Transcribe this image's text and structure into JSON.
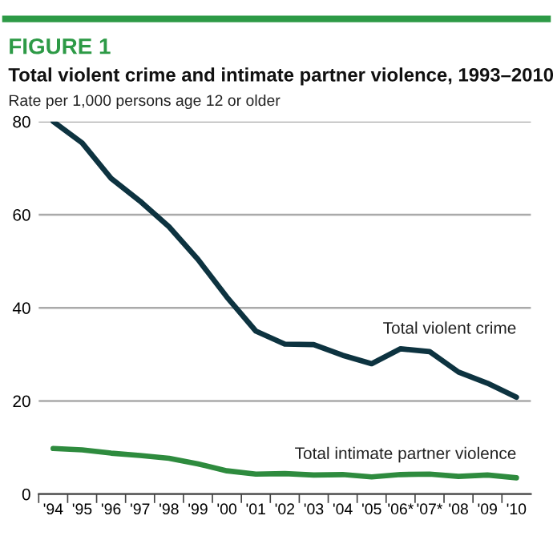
{
  "chart_data": {
    "type": "line",
    "title": "Total violent crime and intimate partner violence, 1993–2010",
    "subtitle": "FIGURE 1",
    "ylabel": "Rate per 1,000 persons age 12 or older",
    "categories": [
      "'94",
      "'95",
      "'96",
      "'97",
      "'98",
      "'99",
      "'00",
      "'01",
      "'02",
      "'03",
      "'04",
      "'05",
      "'06*",
      "'07*",
      "'08",
      "'09",
      "'10"
    ],
    "series": [
      {
        "name": "Total violent crime",
        "color": "#0d3340",
        "values": [
          80,
          75.4,
          67.8,
          62.9,
          57.4,
          50.4,
          42.3,
          35,
          32.2,
          32.1,
          29.8,
          28,
          31.2,
          30.6,
          26.2,
          23.8,
          20.8
        ]
      },
      {
        "name": "Total intimate partner violence",
        "color": "#2e8b3e",
        "values": [
          9.8,
          9.5,
          8.8,
          8.3,
          7.7,
          6.5,
          5.0,
          4.3,
          4.4,
          4.1,
          4.2,
          3.7,
          4.2,
          4.3,
          3.8,
          4.1,
          3.5
        ]
      }
    ],
    "ylim": [
      0,
      80
    ],
    "yticks": [
      0,
      20,
      40,
      60,
      80
    ],
    "grid": "y",
    "legend": false,
    "marker": "none",
    "line_style": "solid"
  }
}
